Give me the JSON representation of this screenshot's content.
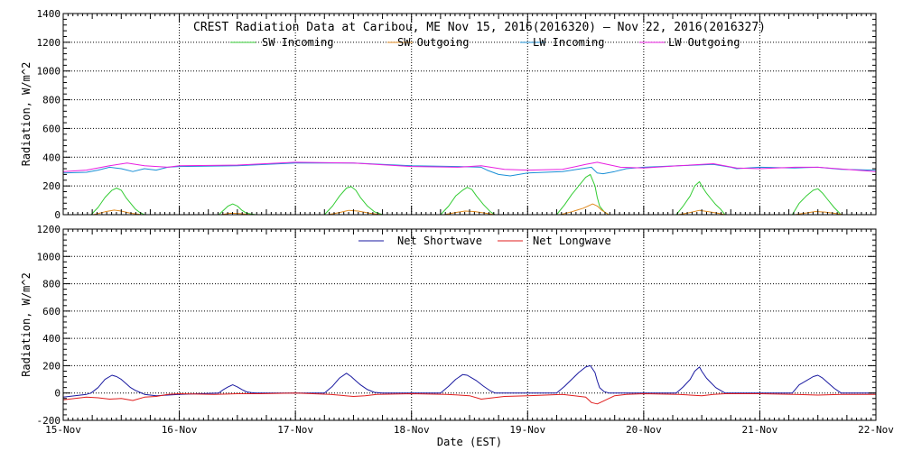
{
  "chart_data": [
    {
      "type": "line",
      "title": "CREST Radiation Data at Caribou, ME   Nov 15, 2016(2016320) – Nov 22, 2016(2016327)",
      "xlabel": "",
      "ylabel": "Radiation, W/m^2",
      "xlim": [
        0,
        7
      ],
      "ylim": [
        0,
        1400
      ],
      "yticks": [
        0,
        200,
        400,
        600,
        800,
        1000,
        1200,
        1400
      ],
      "grid": true,
      "legend": "top",
      "series": [
        {
          "name": "SW Incoming",
          "color": "#33cc33",
          "x": [
            0.24,
            0.3,
            0.36,
            0.42,
            0.46,
            0.5,
            0.54,
            0.58,
            0.62,
            0.66,
            0.7,
            1.34,
            1.38,
            1.42,
            1.46,
            1.5,
            1.54,
            1.58,
            1.62,
            1.66,
            2.25,
            2.32,
            2.38,
            2.44,
            2.48,
            2.52,
            2.56,
            2.62,
            2.68,
            2.75,
            3.25,
            3.32,
            3.38,
            3.44,
            3.48,
            3.52,
            3.56,
            3.62,
            3.68,
            3.72,
            4.25,
            4.32,
            4.38,
            4.44,
            4.5,
            4.54,
            4.58,
            4.6,
            4.62,
            4.66,
            4.7,
            5.28,
            5.34,
            5.4,
            5.44,
            5.48,
            5.5,
            5.54,
            5.58,
            5.62,
            5.66,
            5.7,
            6.28,
            6.34,
            6.4,
            6.46,
            6.5,
            6.54,
            6.58,
            6.64,
            6.7
          ],
          "y": [
            0,
            50,
            120,
            170,
            185,
            170,
            120,
            80,
            40,
            15,
            0,
            0,
            30,
            60,
            75,
            60,
            30,
            10,
            5,
            0,
            0,
            60,
            130,
            185,
            195,
            170,
            120,
            60,
            20,
            0,
            0,
            60,
            130,
            170,
            190,
            175,
            130,
            70,
            20,
            0,
            0,
            70,
            140,
            200,
            260,
            280,
            200,
            120,
            60,
            20,
            0,
            0,
            60,
            130,
            200,
            230,
            200,
            150,
            110,
            70,
            40,
            0,
            0,
            80,
            130,
            170,
            180,
            150,
            110,
            50,
            0
          ]
        },
        {
          "name": "SW Outgoing",
          "color": "#e08a1e",
          "x": [
            0.26,
            0.36,
            0.44,
            0.5,
            0.58,
            0.68,
            1.36,
            1.44,
            1.52,
            1.62,
            2.28,
            2.38,
            2.46,
            2.54,
            2.64,
            2.74,
            3.28,
            3.38,
            3.46,
            3.54,
            3.64,
            3.72,
            4.28,
            4.38,
            4.48,
            4.56,
            4.6,
            4.64,
            4.7,
            5.3,
            5.4,
            5.48,
            5.56,
            5.64,
            5.7,
            6.3,
            6.4,
            6.48,
            6.56,
            6.66,
            6.72
          ],
          "y": [
            0,
            20,
            32,
            25,
            10,
            0,
            0,
            10,
            8,
            0,
            0,
            15,
            30,
            25,
            10,
            0,
            0,
            15,
            25,
            22,
            10,
            0,
            0,
            20,
            45,
            75,
            60,
            30,
            0,
            0,
            15,
            30,
            20,
            10,
            0,
            0,
            12,
            22,
            18,
            8,
            0
          ]
        },
        {
          "name": "LW Incoming",
          "color": "#1a8fd6",
          "x": [
            0,
            0.2,
            0.3,
            0.4,
            0.5,
            0.6,
            0.7,
            0.8,
            0.9,
            1.0,
            1.5,
            2.0,
            2.5,
            3.0,
            3.4,
            3.6,
            3.65,
            3.75,
            3.85,
            4.0,
            4.3,
            4.55,
            4.6,
            4.65,
            4.75,
            4.85,
            5.0,
            5.3,
            5.6,
            5.75,
            5.8,
            6.0,
            6.3,
            6.5,
            6.7,
            7.0
          ],
          "y": [
            290,
            295,
            310,
            330,
            320,
            300,
            320,
            310,
            330,
            335,
            340,
            360,
            360,
            340,
            335,
            330,
            310,
            280,
            270,
            290,
            300,
            330,
            290,
            285,
            300,
            320,
            330,
            340,
            350,
            330,
            320,
            330,
            325,
            330,
            315,
            310
          ]
        },
        {
          "name": "LW Outgoing",
          "color": "#e81ee0",
          "x": [
            0,
            0.2,
            0.4,
            0.55,
            0.7,
            0.9,
            1.0,
            1.5,
            2.0,
            2.5,
            3.0,
            3.4,
            3.6,
            3.8,
            4.0,
            4.3,
            4.5,
            4.6,
            4.8,
            5.0,
            5.3,
            5.6,
            5.8,
            6.0,
            6.3,
            6.5,
            7.0
          ],
          "y": [
            300,
            310,
            340,
            360,
            340,
            330,
            340,
            345,
            365,
            360,
            335,
            330,
            340,
            315,
            310,
            315,
            350,
            365,
            330,
            325,
            340,
            355,
            325,
            320,
            330,
            330,
            300
          ]
        }
      ]
    },
    {
      "type": "line",
      "title": "",
      "xlabel": "Date (EST)",
      "ylabel": "Radiation, W/m^2",
      "xlim": [
        0,
        7
      ],
      "ylim": [
        -200,
        1200
      ],
      "yticks": [
        -200,
        0,
        200,
        400,
        600,
        800,
        1000,
        1200
      ],
      "grid": true,
      "legend": "top",
      "categories": [
        "15-Nov",
        "16-Nov",
        "17-Nov",
        "18-Nov",
        "19-Nov",
        "20-Nov",
        "21-Nov",
        "22-Nov"
      ],
      "series": [
        {
          "name": "Net Shortwave",
          "color": "#1a1aa0",
          "x": [
            0,
            0.1,
            0.2,
            0.24,
            0.3,
            0.36,
            0.42,
            0.46,
            0.5,
            0.54,
            0.58,
            0.62,
            0.66,
            0.7,
            0.8,
            0.9,
            1.0,
            1.34,
            1.38,
            1.42,
            1.46,
            1.5,
            1.54,
            1.58,
            1.62,
            1.66,
            2.0,
            2.25,
            2.32,
            2.38,
            2.44,
            2.48,
            2.52,
            2.56,
            2.62,
            2.68,
            2.75,
            3.0,
            3.25,
            3.32,
            3.38,
            3.44,
            3.48,
            3.52,
            3.56,
            3.62,
            3.68,
            3.72,
            4.0,
            4.25,
            4.32,
            4.38,
            4.44,
            4.5,
            4.54,
            4.58,
            4.6,
            4.62,
            4.66,
            4.7,
            5.0,
            5.28,
            5.34,
            5.4,
            5.44,
            5.48,
            5.5,
            5.54,
            5.58,
            5.62,
            5.66,
            5.7,
            6.0,
            6.28,
            6.34,
            6.4,
            6.46,
            6.5,
            6.54,
            6.58,
            6.64,
            6.7,
            7.0
          ],
          "y": [
            -30,
            -20,
            -10,
            0,
            40,
            100,
            130,
            120,
            100,
            70,
            40,
            20,
            5,
            -10,
            -20,
            -15,
            -10,
            0,
            25,
            45,
            60,
            45,
            25,
            8,
            3,
            0,
            0,
            0,
            50,
            110,
            145,
            120,
            90,
            60,
            25,
            5,
            0,
            0,
            0,
            50,
            100,
            135,
            130,
            110,
            90,
            50,
            15,
            0,
            0,
            0,
            50,
            100,
            150,
            190,
            200,
            150,
            90,
            40,
            10,
            0,
            0,
            0,
            45,
            100,
            160,
            190,
            160,
            110,
            75,
            40,
            20,
            0,
            0,
            0,
            60,
            90,
            120,
            130,
            110,
            80,
            35,
            0,
            0
          ]
        },
        {
          "name": "Net Longwave",
          "color": "#e01e1e",
          "x": [
            0,
            0.1,
            0.2,
            0.3,
            0.4,
            0.5,
            0.6,
            0.7,
            0.8,
            0.9,
            1.0,
            1.3,
            1.5,
            1.7,
            2.0,
            2.3,
            2.5,
            2.6,
            2.7,
            3.0,
            3.3,
            3.5,
            3.6,
            3.7,
            3.8,
            4.0,
            4.3,
            4.5,
            4.55,
            4.6,
            4.65,
            4.75,
            4.85,
            5.0,
            5.3,
            5.5,
            5.6,
            5.7,
            6.0,
            6.3,
            6.5,
            6.7,
            7.0
          ],
          "y": [
            -50,
            -40,
            -30,
            -35,
            -45,
            -40,
            -55,
            -30,
            -25,
            -10,
            -5,
            -10,
            -5,
            -5,
            0,
            -10,
            -25,
            -20,
            -10,
            -5,
            -10,
            -20,
            -45,
            -35,
            -25,
            -20,
            -10,
            -30,
            -70,
            -80,
            -60,
            -20,
            -10,
            -5,
            -10,
            -20,
            -10,
            -5,
            -5,
            -10,
            -15,
            -10,
            -10
          ]
        }
      ]
    }
  ]
}
